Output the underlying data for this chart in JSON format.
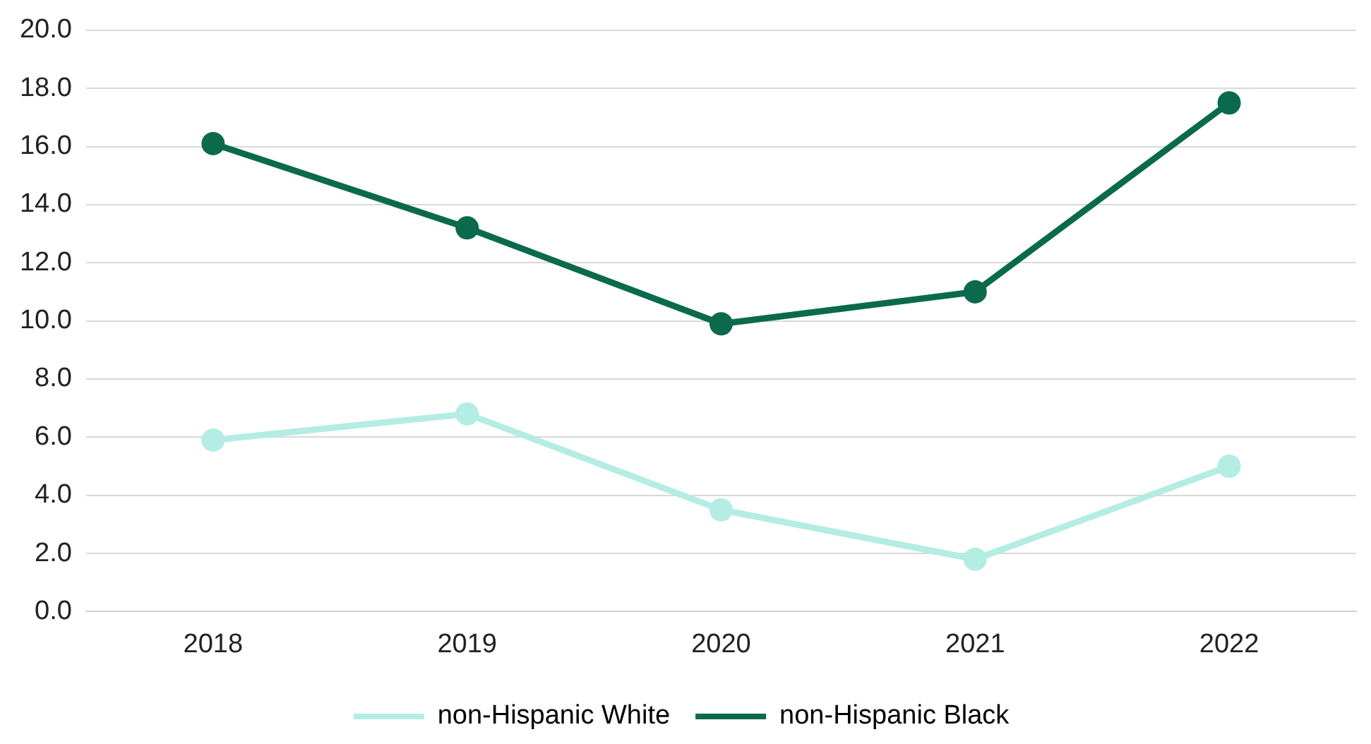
{
  "chart_data": {
    "type": "line",
    "categories": [
      "2018",
      "2019",
      "2020",
      "2021",
      "2022"
    ],
    "series": [
      {
        "name": "non-Hispanic White",
        "color": "#b3ede3",
        "values": [
          5.9,
          6.8,
          3.5,
          1.8,
          5.0
        ]
      },
      {
        "name": "non-Hispanic Black",
        "color": "#0b6a4c",
        "values": [
          16.1,
          13.2,
          9.9,
          11.0,
          17.5
        ]
      }
    ],
    "ylim": [
      0,
      20
    ],
    "yticks": [
      {
        "value": 0,
        "label": "0.0"
      },
      {
        "value": 2,
        "label": "2.0"
      },
      {
        "value": 4,
        "label": "4.0"
      },
      {
        "value": 6,
        "label": "6.0"
      },
      {
        "value": 8,
        "label": "8.0"
      },
      {
        "value": 10,
        "label": "10.0"
      },
      {
        "value": 12,
        "label": "12.0"
      },
      {
        "value": 14,
        "label": "14.0"
      },
      {
        "value": 16,
        "label": "16.0"
      },
      {
        "value": 18,
        "label": "18.0"
      },
      {
        "value": 20,
        "label": "20.0"
      }
    ],
    "grid": "y",
    "legend": "bottom",
    "marker": "circle",
    "line_style": "solid"
  }
}
